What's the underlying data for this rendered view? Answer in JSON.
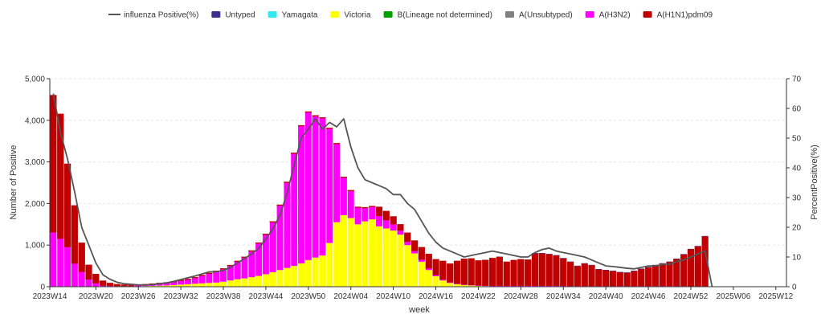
{
  "chart_data": {
    "type": "bar",
    "stacked": true,
    "xlabel": "week",
    "ylabel_left": "Number of Positive",
    "ylabel_right": "PercentPositive(%)",
    "ylim_left": [
      0,
      5000
    ],
    "ylim_right": [
      0,
      70
    ],
    "left_ticks": [
      "0",
      "1,000",
      "2,000",
      "3,000",
      "4,000",
      "5,000"
    ],
    "right_ticks": [
      "0",
      "10",
      "20",
      "30",
      "40",
      "50",
      "60",
      "70"
    ],
    "x_tick_labels": [
      "2023W14",
      "2023W20",
      "2023W26",
      "2023W32",
      "2023W38",
      "2023W44",
      "2023W50",
      "2024W04",
      "2024W10",
      "2024W16",
      "2024W22",
      "2024W28",
      "2024W34",
      "2024W40",
      "2024W46",
      "2024W52",
      "2025W06",
      "2025W12"
    ],
    "x_tick_start_index": 0,
    "x_tick_step": 6,
    "total_weeks": 104,
    "legend": [
      {
        "name": "influenza Positive(%)",
        "kind": "line",
        "color": "#555555"
      },
      {
        "name": "Untyped",
        "kind": "box",
        "color": "#3a2f8f"
      },
      {
        "name": "Yamagata",
        "kind": "box",
        "color": "#33e8ef"
      },
      {
        "name": "Victoria",
        "kind": "box",
        "color": "#ffff00"
      },
      {
        "name": "B(Lineage not determined)",
        "kind": "box",
        "color": "#00a000"
      },
      {
        "name": "A(Unsubtyped)",
        "kind": "box",
        "color": "#808080"
      },
      {
        "name": "A(H3N2)",
        "kind": "box",
        "color": "#ff00ff"
      },
      {
        "name": "A(H1N1)pdm09",
        "kind": "box",
        "color": "#c00000"
      }
    ],
    "series": [
      {
        "name": "Victoria",
        "color": "#ffff00",
        "values": [
          5,
          5,
          5,
          5,
          5,
          5,
          5,
          5,
          5,
          5,
          5,
          5,
          10,
          15,
          20,
          25,
          30,
          40,
          50,
          60,
          70,
          80,
          90,
          100,
          120,
          150,
          180,
          200,
          230,
          260,
          300,
          350,
          400,
          450,
          500,
          560,
          640,
          700,
          750,
          1050,
          1550,
          1720,
          1650,
          1500,
          1570,
          1620,
          1450,
          1400,
          1350,
          1250,
          1000,
          800,
          600,
          400,
          250,
          150,
          90,
          60,
          40,
          30,
          20,
          15,
          10,
          10,
          10,
          10,
          10,
          10,
          10,
          10,
          10,
          10,
          10,
          5,
          5,
          5,
          5,
          5,
          5,
          5,
          5,
          5,
          5,
          5,
          5,
          5,
          5,
          5,
          5,
          5,
          0,
          0,
          0,
          0,
          0,
          0,
          0,
          0,
          0,
          0,
          0,
          0,
          0,
          0
        ]
      },
      {
        "name": "A(H3N2)",
        "color": "#ff00ff",
        "values": [
          1300,
          1150,
          950,
          550,
          350,
          170,
          80,
          20,
          15,
          10,
          10,
          10,
          20,
          25,
          35,
          45,
          55,
          70,
          90,
          110,
          140,
          180,
          220,
          260,
          300,
          350,
          420,
          500,
          620,
          780,
          950,
          1200,
          1550,
          2050,
          2700,
          3300,
          3550,
          3400,
          3300,
          2750,
          1880,
          900,
          650,
          400,
          320,
          300,
          250,
          200,
          150,
          100,
          80,
          60,
          50,
          40,
          30,
          20,
          15,
          10,
          10,
          10,
          10,
          10,
          10,
          10,
          10,
          10,
          10,
          10,
          10,
          10,
          10,
          10,
          10,
          10,
          10,
          10,
          10,
          10,
          10,
          10,
          10,
          10,
          10,
          10,
          10,
          10,
          10,
          10,
          10,
          10,
          0,
          0,
          0,
          0,
          0,
          0,
          0,
          0,
          0,
          0,
          0,
          0,
          0,
          0
        ]
      },
      {
        "name": "A(H1N1)pdm09",
        "color": "#c00000",
        "values": [
          3300,
          3000,
          2000,
          1400,
          700,
          350,
          220,
          120,
          70,
          45,
          35,
          30,
          25,
          20,
          20,
          20,
          20,
          20,
          20,
          20,
          20,
          20,
          20,
          20,
          20,
          20,
          20,
          20,
          20,
          20,
          20,
          20,
          20,
          20,
          20,
          20,
          20,
          20,
          20,
          20,
          20,
          20,
          20,
          20,
          20,
          20,
          220,
          220,
          190,
          150,
          220,
          250,
          300,
          350,
          380,
          450,
          450,
          550,
          620,
          640,
          600,
          620,
          670,
          700,
          580,
          620,
          640,
          630,
          780,
          780,
          760,
          730,
          660,
          580,
          480,
          540,
          500,
          400,
          380,
          360,
          330,
          320,
          360,
          410,
          450,
          500,
          540,
          580,
          650,
          760,
          900,
          970,
          1210,
          0,
          0,
          0,
          0,
          0,
          0,
          0,
          0,
          0,
          0,
          0
        ]
      },
      {
        "name": "Untyped",
        "color": "#3a2f8f",
        "values": [
          0,
          0,
          0,
          0,
          0,
          0,
          0,
          0,
          0,
          0,
          0,
          0,
          0,
          0,
          0,
          0,
          0,
          0,
          0,
          0,
          0,
          0,
          0,
          0,
          0,
          0,
          0,
          0,
          0,
          0,
          0,
          0,
          0,
          0,
          0,
          0,
          0,
          0,
          0,
          0,
          0,
          0,
          0,
          0,
          0,
          0,
          0,
          0,
          0,
          0,
          0,
          0,
          0,
          0,
          0,
          0,
          0,
          0,
          0,
          0,
          0,
          0,
          0,
          0,
          0,
          0,
          0,
          0,
          10,
          10,
          10,
          10,
          10,
          10,
          10,
          10,
          10,
          10,
          10,
          10,
          10,
          10,
          10,
          10,
          10,
          10,
          10,
          10,
          10,
          10,
          10,
          10,
          10,
          0,
          0,
          0,
          0,
          0,
          0,
          0,
          0,
          0,
          0,
          0
        ]
      },
      {
        "name": "influenza Positive(%)",
        "kind": "line",
        "axis": "right",
        "color": "#555555",
        "values": [
          65,
          52,
          43,
          32,
          20,
          14,
          8,
          4,
          2.5,
          1.5,
          1,
          0.8,
          0.6,
          0.6,
          0.7,
          1,
          1.3,
          1.8,
          2.4,
          3,
          3.6,
          4.3,
          5,
          5,
          5.5,
          6.5,
          8,
          9.5,
          11,
          13,
          16,
          19.5,
          24,
          31.5,
          41,
          50,
          53,
          56.5,
          53,
          55.3,
          53.8,
          56.5,
          47,
          40,
          36,
          35,
          34,
          33,
          31,
          31,
          28,
          26,
          22,
          18,
          15,
          13,
          12,
          11,
          10,
          10.5,
          11,
          11.5,
          12,
          11.5,
          11,
          10.5,
          10,
          10,
          11.5,
          12.5,
          13,
          12,
          11.5,
          11,
          10.5,
          10,
          9,
          8,
          7,
          6.8,
          6.5,
          6.2,
          6,
          6.5,
          7,
          7,
          7.5,
          7.5,
          8.5,
          9,
          10,
          11,
          12,
          0,
          0,
          0,
          0,
          0,
          0,
          0,
          0,
          0,
          0,
          0
        ]
      }
    ],
    "line_points_count": 94
  }
}
